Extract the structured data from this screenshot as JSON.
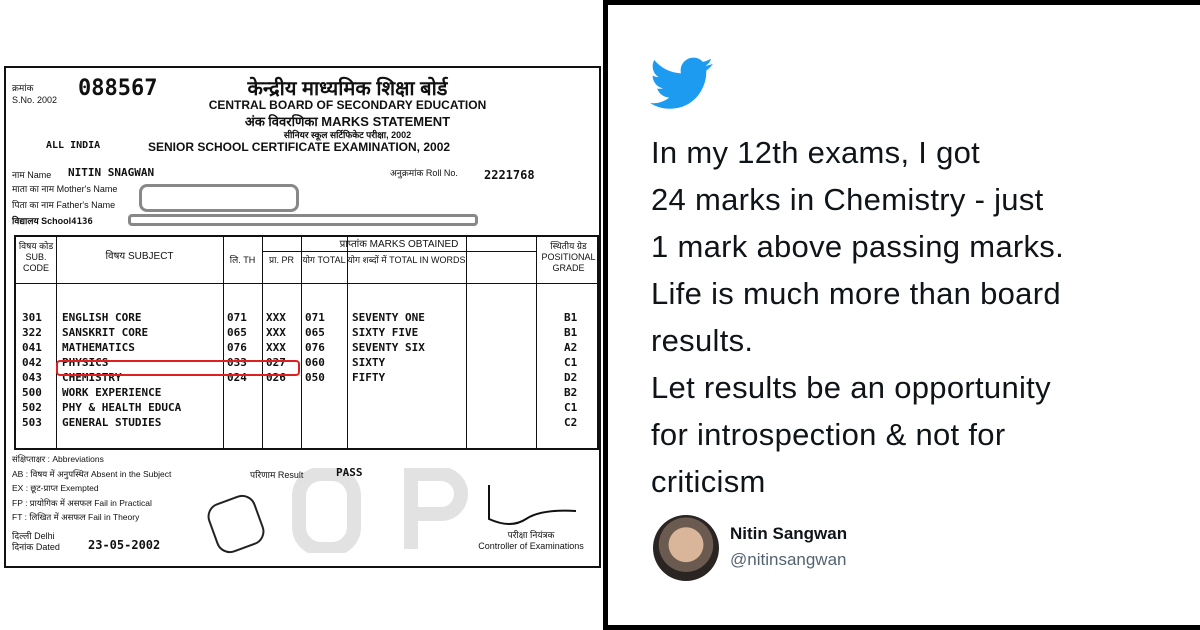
{
  "certificate": {
    "serial_label_hi": "क्रमांक",
    "serial_label": "S.No. 2002",
    "serial_number": "088567",
    "board_hi": "केन्द्रीय माध्यमिक शिक्षा बोर्ड",
    "board": "CENTRAL BOARD OF SECONDARY EDUCATION",
    "statement": "अंक विवरणिका MARKS STATEMENT",
    "exam_hi": "सीनियर स्कूल सर्टिफिकेट परीक्षा, 2002",
    "region": "ALL INDIA",
    "exam": "SENIOR SCHOOL CERTIFICATE EXAMINATION, 2002",
    "name_label": "नाम Name",
    "name": "NITIN SNAGWAN",
    "roll_label": "अनुक्रमांक Roll No.",
    "roll": "2221768",
    "mother_label": "माता का नाम Mother's Name",
    "father_label": "पिता का नाम Father's Name",
    "school_label": "विद्यालय School",
    "school": "4136",
    "headers": {
      "code": "विषय कोड SUB. CODE",
      "subject": "विषय SUBJECT",
      "marks": "प्राप्तांक MARKS OBTAINED",
      "th": "लि. TH",
      "pr": "प्रा. PR",
      "total": "योग TOTAL",
      "words": "योग शब्दों में TOTAL IN WORDS",
      "grade": "स्थितीय ग्रेड POSITIONAL GRADE"
    },
    "rows": [
      {
        "code": "301",
        "subject": "ENGLISH CORE",
        "th": "071",
        "pr": "XXX",
        "total": "071",
        "words": "SEVENTY ONE",
        "grade": "B1"
      },
      {
        "code": "322",
        "subject": "SANSKRIT CORE",
        "th": "065",
        "pr": "XXX",
        "total": "065",
        "words": "SIXTY FIVE",
        "grade": "B1"
      },
      {
        "code": "041",
        "subject": "MATHEMATICS",
        "th": "076",
        "pr": "XXX",
        "total": "076",
        "words": "SEVENTY SIX",
        "grade": "A2"
      },
      {
        "code": "042",
        "subject": "PHYSICS",
        "th": "033",
        "pr": "027",
        "total": "060",
        "words": "SIXTY",
        "grade": "C1"
      },
      {
        "code": "043",
        "subject": "CHEMISTRY",
        "th": "024",
        "pr": "026",
        "total": "050",
        "words": "FIFTY",
        "grade": "D2"
      },
      {
        "code": "500",
        "subject": "WORK EXPERIENCE",
        "th": "",
        "pr": "",
        "total": "",
        "words": "",
        "grade": "B2"
      },
      {
        "code": "502",
        "subject": "PHY & HEALTH EDUCA",
        "th": "",
        "pr": "",
        "total": "",
        "words": "",
        "grade": "C1"
      },
      {
        "code": "503",
        "subject": "GENERAL STUDIES",
        "th": "",
        "pr": "",
        "total": "",
        "words": "",
        "grade": "C2"
      }
    ],
    "abbr": [
      "संक्षिप्ताक्षर : Abbreviations",
      "AB : विषय में अनुपस्थित Absent in the Subject",
      "EX : छूट-प्राप्त Exempted",
      "FP : प्रायोगिक में असफल Fail in Practical",
      "FT : लिखित में असफल Fail in Theory"
    ],
    "result_label": "परिणाम Result",
    "result": "PASS",
    "place": "दिल्ली Delhi",
    "dated_label": "दिनांक Dated",
    "date": "23-05-2002",
    "controller": "परीक्षा नियंत्रक",
    "controller_en": "Controller of Examinations",
    "highlight_color": "#e02020"
  },
  "tweet": {
    "icon": "twitter-bird-icon",
    "brand_color": "#1d9bf0",
    "lines": [
      "In my 12th exams, I got",
      "24 marks in Chemistry - just",
      "1 mark above passing marks.",
      "Life is much more than board",
      "results.",
      "Let results be an opportunity",
      "for introspection & not for",
      "criticism"
    ],
    "author_name": "Nitin Sangwan",
    "author_handle": "@nitinsangwan"
  }
}
